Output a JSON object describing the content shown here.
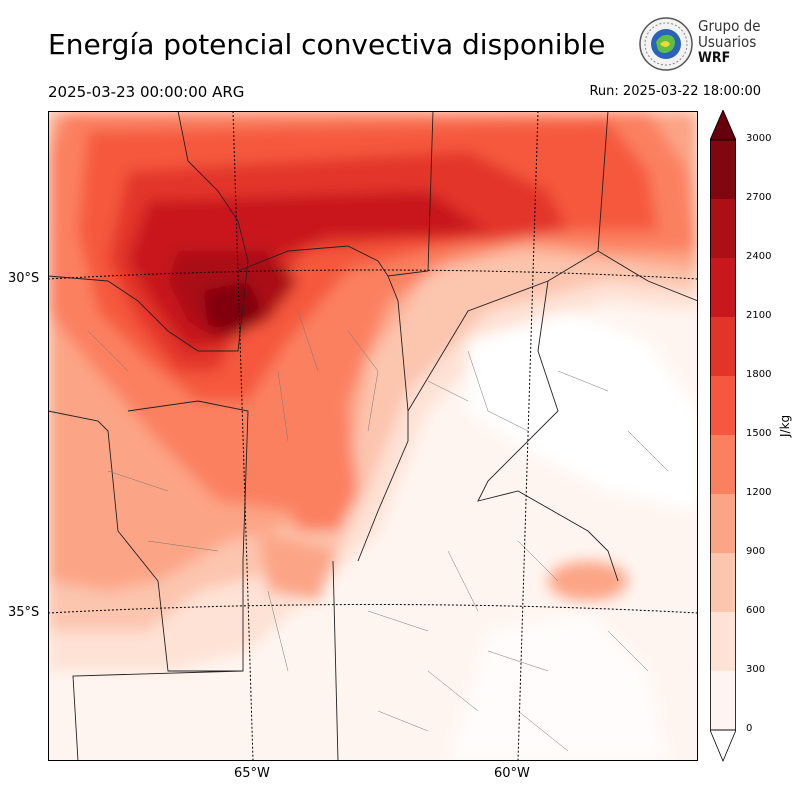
{
  "title": "Energía potencial convectiva disponible",
  "valid_time": "2025-03-23 00:00:00 ARG",
  "run_time": "Run: 2025-03-22 18:00:00",
  "logo": {
    "line1": "Grupo de",
    "line2": "Usuarios",
    "line3": "WRF",
    "icon": "wrf-users-group-seal"
  },
  "lat_labels": [
    "30°S",
    "35°S"
  ],
  "lon_labels": [
    "65°W",
    "60°W"
  ],
  "colorbar": {
    "unit": "J/kg",
    "ticks": [
      "0",
      "300",
      "600",
      "900",
      "1200",
      "1500",
      "1800",
      "2100",
      "2400",
      "2700",
      "3000"
    ],
    "colors": [
      "#fff5f0",
      "#fee2d6",
      "#fcc5ae",
      "#fca486",
      "#fb8060",
      "#f5583e",
      "#e33429",
      "#c8171d",
      "#aa1016",
      "#800610"
    ]
  }
}
